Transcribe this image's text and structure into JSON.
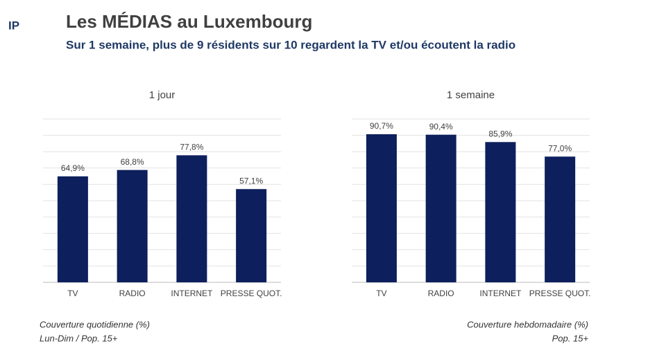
{
  "header": {
    "logo": "IP",
    "title": "Les MÉDIAS au Luxembourg",
    "subtitle": "Sur 1 semaine, plus de 9 résidents sur 10 regardent la TV et/ou écoutent la radio"
  },
  "chart_data": [
    {
      "type": "bar",
      "title": "1 jour",
      "categories": [
        "TV",
        "RADIO",
        "INTERNET",
        "PRESSE QUOT."
      ],
      "values": [
        64.9,
        68.8,
        77.8,
        57.1
      ],
      "value_labels": [
        "64,9%",
        "68,8%",
        "77,8%",
        "57,1%"
      ],
      "color": "#0d1f5c",
      "ylim": [
        0,
        100
      ],
      "yticks": [
        0,
        10,
        20,
        30,
        40,
        50,
        60,
        70,
        80,
        90,
        100
      ],
      "grid": true,
      "notes": [
        "Couverture quotidienne (%)",
        "Lun-Dim / Pop. 15+"
      ]
    },
    {
      "type": "bar",
      "title": "1 semaine",
      "categories": [
        "TV",
        "RADIO",
        "INTERNET",
        "PRESSE QUOT."
      ],
      "values": [
        90.7,
        90.4,
        85.9,
        77.0
      ],
      "value_labels": [
        "90,7%",
        "90,4%",
        "85,9%",
        "77,0%"
      ],
      "color": "#0d1f5c",
      "ylim": [
        0,
        100
      ],
      "yticks": [
        0,
        10,
        20,
        30,
        40,
        50,
        60,
        70,
        80,
        90,
        100
      ],
      "grid": true,
      "notes": [
        "Couverture hebdomadaire (%)",
        "Pop. 15+"
      ]
    }
  ]
}
